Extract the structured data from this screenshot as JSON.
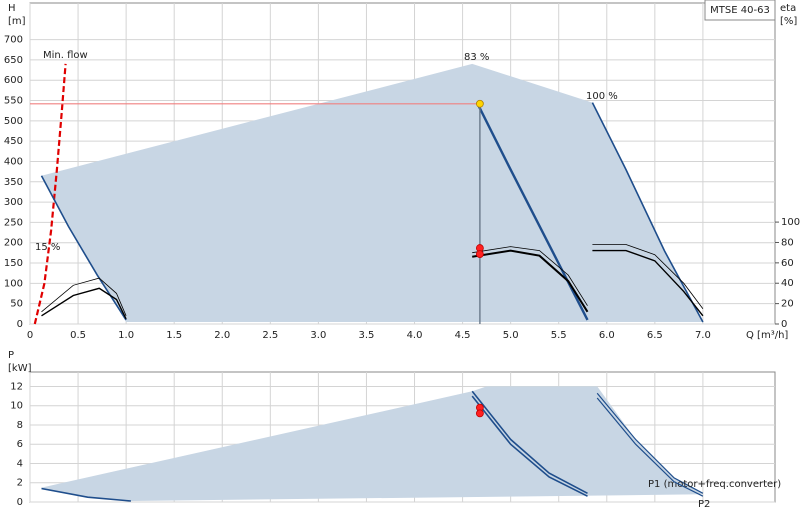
{
  "chart_data": [
    {
      "type": "line",
      "ylabel": [
        "H",
        "[m]"
      ],
      "y2label": [
        "eta",
        "[%]"
      ],
      "xlabel": "Q [m³/h]",
      "legend": "MTSE 40-63",
      "legend_corner": "top-right",
      "grid": true,
      "xlim": [
        0,
        7.75
      ],
      "ylim": [
        0,
        790
      ],
      "y2lim": [
        0,
        315
      ],
      "xticks": [
        0,
        0.5,
        {
          "value": 1,
          "label": "1.0"
        },
        1.5,
        {
          "value": 2,
          "label": "2.0"
        },
        2.5,
        {
          "value": 3,
          "label": "3.0"
        },
        3.5,
        {
          "value": 4,
          "label": "4.0"
        },
        4.5,
        {
          "value": 5,
          "label": "5.0"
        },
        5.5,
        {
          "value": 6,
          "label": "6.0"
        },
        6.5,
        {
          "value": 7,
          "label": "7.0"
        }
      ],
      "yticks": [
        0,
        50,
        100,
        150,
        200,
        250,
        300,
        350,
        400,
        450,
        500,
        550,
        600,
        650,
        700
      ],
      "y2ticks": [
        0,
        20,
        40,
        60,
        80,
        100
      ],
      "series": [
        {
          "style": "area",
          "color": "#c8d6e4",
          "x": [
            0.12,
            4.6,
            5.85,
            6.2,
            6.6,
            7.0,
            1.0,
            0.7,
            0.4,
            0.12
          ],
          "values": [
            365,
            640,
            545,
            380,
            180,
            5,
            5,
            120,
            240,
            365
          ]
        },
        {
          "name": "Min. flow",
          "color": "#e00000",
          "dash": true,
          "width": 2.2,
          "x": [
            0.05,
            0.15,
            0.22,
            0.28,
            0.33,
            0.37
          ],
          "values": [
            0,
            100,
            230,
            380,
            520,
            640
          ]
        },
        {
          "name": "15 %",
          "color": "#1f4e8c",
          "width": 1.6,
          "x": [
            0.12,
            0.4,
            0.7,
            1.0
          ],
          "values": [
            365,
            240,
            120,
            10
          ]
        },
        {
          "name": "83 %",
          "color": "#1f4e8c",
          "width": 2.4,
          "x": [
            4.65,
            5.0,
            5.4,
            5.8
          ],
          "values": [
            545,
            380,
            195,
            10
          ]
        },
        {
          "name": "100 %",
          "color": "#1f4e8c",
          "width": 1.6,
          "x": [
            5.85,
            6.2,
            6.6,
            7.0
          ],
          "values": [
            545,
            380,
            180,
            5
          ]
        },
        {
          "color": "#f08080",
          "width": 1.2,
          "x": [
            0,
            4.68
          ],
          "values": [
            542,
            542
          ]
        },
        {
          "color": "#6a7a8a",
          "width": 1.4,
          "x": [
            4.68,
            4.68
          ],
          "values": [
            0,
            542
          ]
        },
        {
          "axis": "y2",
          "color": "#000000",
          "width": 0.8,
          "x": [
            0.12,
            0.45,
            0.72,
            0.9,
            1.0
          ],
          "values": [
            12,
            38,
            45,
            30,
            8
          ]
        },
        {
          "axis": "y2",
          "color": "#000000",
          "width": 1.4,
          "x": [
            0.12,
            0.45,
            0.72,
            0.9,
            1.0
          ],
          "values": [
            8,
            28,
            35,
            24,
            5
          ]
        },
        {
          "axis": "y2",
          "color": "#000000",
          "width": 0.8,
          "x": [
            4.6,
            5.0,
            5.3,
            5.6,
            5.8
          ],
          "values": [
            70,
            76,
            72,
            48,
            18
          ]
        },
        {
          "axis": "y2",
          "color": "#000000",
          "width": 2,
          "x": [
            4.6,
            5.0,
            5.3,
            5.6,
            5.8
          ],
          "values": [
            66,
            72,
            67,
            42,
            12
          ]
        },
        {
          "axis": "y2",
          "color": "#000000",
          "width": 0.8,
          "x": [
            5.85,
            6.2,
            6.5,
            6.8,
            7.0
          ],
          "values": [
            78,
            78,
            68,
            40,
            15
          ]
        },
        {
          "axis": "y2",
          "color": "#000000",
          "width": 1.4,
          "x": [
            5.85,
            6.2,
            6.5,
            6.8,
            7.0
          ],
          "values": [
            72,
            72,
            62,
            32,
            8
          ]
        }
      ],
      "points": [
        {
          "x": 4.68,
          "value": 542,
          "color": "#ffd400"
        },
        {
          "x": 4.68,
          "value": 74.5,
          "axis": "y2",
          "color": "#ff2020"
        },
        {
          "x": 4.68,
          "value": 68.6,
          "axis": "y2",
          "color": "#ff2020"
        }
      ]
    },
    {
      "type": "line",
      "ylabel": [
        "P",
        "[kW]"
      ],
      "grid": true,
      "xlim": [
        0,
        7.75
      ],
      "ylim": [
        0,
        13.5
      ],
      "yticks": [
        0,
        2,
        4,
        6,
        8,
        10,
        12
      ],
      "series": [
        {
          "style": "area",
          "color": "#c8d6e4",
          "x": [
            0.12,
            4.6,
            4.75,
            5.9,
            6.3,
            6.7,
            7.0,
            1.05,
            0.6,
            0.12
          ],
          "values": [
            1.5,
            11.5,
            12,
            12,
            6.5,
            2.5,
            0.8,
            0.1,
            0.5,
            1.3
          ]
        },
        {
          "color": "#1f4e8c",
          "width": 1.6,
          "x": [
            0.12,
            0.6,
            1.05
          ],
          "values": [
            1.4,
            0.5,
            0.1
          ]
        },
        {
          "color": "#1f4e8c",
          "width": 1.6,
          "x": [
            4.6,
            5.0,
            5.4,
            5.8
          ],
          "values": [
            11.5,
            6.5,
            3,
            0.9
          ]
        },
        {
          "color": "#1f4e8c",
          "width": 1.6,
          "x": [
            4.6,
            5.0,
            5.4,
            5.8
          ],
          "values": [
            11,
            6,
            2.6,
            0.6
          ]
        },
        {
          "name": "P1 (motor+freq.converter)",
          "color": "#1f4e8c",
          "width": 1.2,
          "x": [
            5.9,
            6.3,
            6.7,
            7.0
          ],
          "values": [
            11.3,
            6.5,
            2.5,
            0.9
          ]
        },
        {
          "name": "P2",
          "color": "#1f4e8c",
          "width": 1.2,
          "x": [
            5.9,
            6.3,
            6.7,
            7.0
          ],
          "values": [
            10.8,
            6,
            2.1,
            0.6
          ]
        }
      ],
      "points": [
        {
          "x": 4.68,
          "value": 9.8,
          "color": "#ff2020"
        },
        {
          "x": 4.68,
          "value": 9.2,
          "color": "#ff2020"
        }
      ]
    }
  ]
}
